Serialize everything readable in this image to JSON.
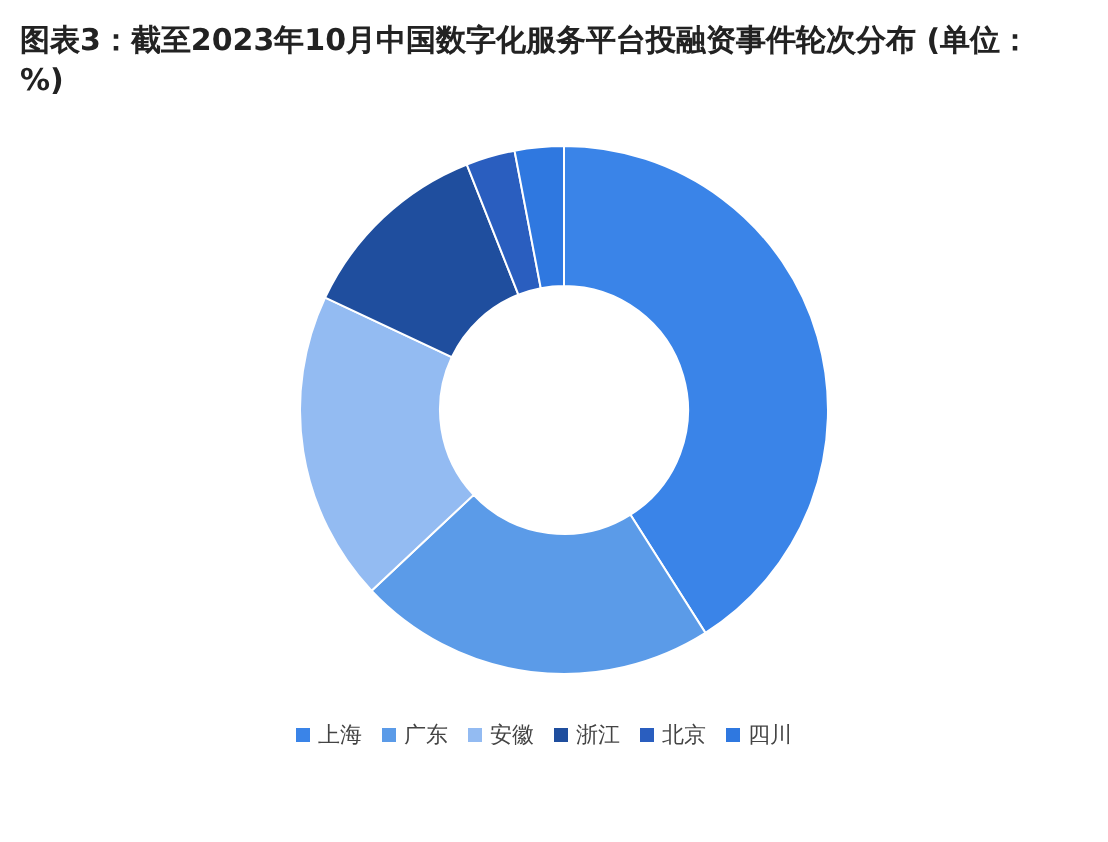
{
  "chart_data": {
    "type": "donut",
    "title": "图表3：截至2023年10月中国数字化服务平台投融资事件轮次分布 (单位：%)",
    "categories": [
      "上海",
      "广东",
      "安徽",
      "浙江",
      "北京",
      "四川"
    ],
    "values": [
      41,
      22,
      19,
      12,
      3,
      3
    ],
    "colors": [
      "#3a84e8",
      "#5b9be8",
      "#93bbf2",
      "#1f4e9e",
      "#2a5ebf",
      "#2f78e0"
    ],
    "legend": "bottom"
  }
}
